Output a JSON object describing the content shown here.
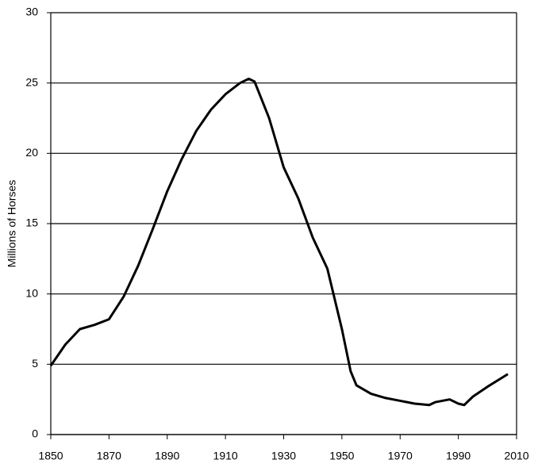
{
  "chart_data": {
    "type": "line",
    "y_label": "Millions of Horses",
    "x": [
      1850,
      1855,
      1860,
      1865,
      1870,
      1875,
      1880,
      1885,
      1890,
      1895,
      1900,
      1905,
      1910,
      1915,
      1918,
      1920,
      1925,
      1930,
      1935,
      1940,
      1945,
      1950,
      1953,
      1955,
      1960,
      1965,
      1970,
      1975,
      1980,
      1982,
      1987,
      1990,
      1992,
      1995,
      2000,
      2007
    ],
    "series": [
      {
        "name": "Horses",
        "color": "#000000",
        "values": [
          4.9,
          6.4,
          7.5,
          7.8,
          8.2,
          9.8,
          12.0,
          14.6,
          17.3,
          19.6,
          21.6,
          23.1,
          24.2,
          25.0,
          25.3,
          25.1,
          22.5,
          19.0,
          16.8,
          14.0,
          11.8,
          7.5,
          4.5,
          3.5,
          2.9,
          2.6,
          2.4,
          2.2,
          2.1,
          2.3,
          2.5,
          2.2,
          2.1,
          2.7,
          3.4,
          4.3
        ]
      }
    ],
    "xlim": [
      1850,
      2010
    ],
    "xticks": [
      1850,
      1870,
      1890,
      1910,
      1930,
      1950,
      1970,
      1990,
      2010
    ],
    "ylim": [
      0,
      30
    ],
    "yticks": [
      0,
      5,
      10,
      15,
      20,
      25,
      30
    ],
    "grid": true
  }
}
